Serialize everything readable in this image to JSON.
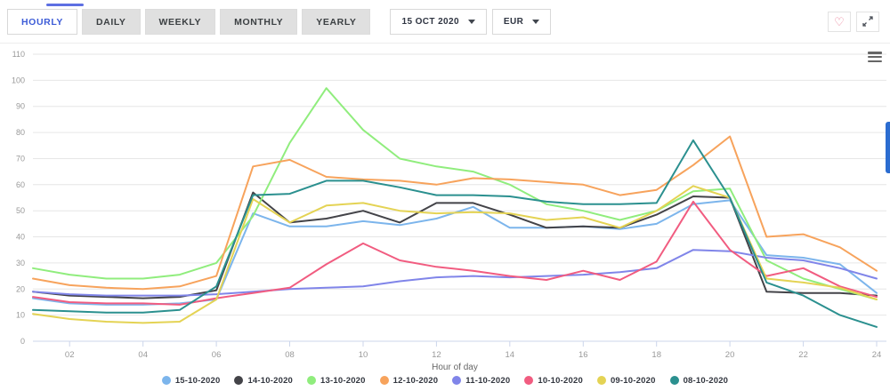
{
  "header": {
    "tabs": [
      {
        "label": "HOURLY",
        "active": true
      },
      {
        "label": "DAILY",
        "active": false
      },
      {
        "label": "WEEKLY",
        "active": false
      },
      {
        "label": "MONTHLY",
        "active": false
      },
      {
        "label": "YEARLY",
        "active": false
      }
    ],
    "date_select": {
      "value": "15 OCT 2020"
    },
    "currency_select": {
      "value": "EUR"
    },
    "favorite_icon": "heart-outline",
    "fullscreen_icon": "expand-arrows",
    "context_menu_icon": "hamburger-menu"
  },
  "chart_data": {
    "type": "line",
    "title": "",
    "xlabel": "Hour of day",
    "ylabel": "",
    "ylim": [
      0,
      110
    ],
    "y_ticks": [
      0,
      10,
      20,
      30,
      40,
      50,
      60,
      70,
      80,
      90,
      100,
      110
    ],
    "x_hours": [
      1,
      2,
      3,
      4,
      5,
      6,
      7,
      8,
      9,
      10,
      11,
      12,
      13,
      14,
      15,
      16,
      17,
      18,
      19,
      20,
      21,
      22,
      23,
      24
    ],
    "x_tick_labels": [
      "02",
      "04",
      "06",
      "08",
      "10",
      "12",
      "14",
      "16",
      "18",
      "20",
      "22",
      "24"
    ],
    "grid": true,
    "legend_position": "bottom",
    "series": [
      {
        "name": "15-10-2020",
        "color": "#7cb5ec",
        "values": [
          16.5,
          14.5,
          14,
          14,
          14.5,
          16,
          49,
          44,
          44,
          46,
          44.5,
          47,
          51.5,
          43.5,
          43.5,
          44,
          43,
          45,
          52.5,
          54,
          33,
          32,
          29.5,
          18.5
        ]
      },
      {
        "name": "14-10-2020",
        "color": "#434348",
        "values": [
          19,
          17.5,
          17,
          16.5,
          17,
          19.5,
          57,
          45.5,
          47,
          50,
          45.5,
          53,
          53,
          48.5,
          43.5,
          44,
          43.5,
          48.5,
          55.5,
          55,
          19,
          18.5,
          18.5,
          17.5
        ]
      },
      {
        "name": "13-10-2020",
        "color": "#90ed7d",
        "values": [
          28,
          25.5,
          24,
          24,
          25.5,
          30,
          48,
          76,
          97,
          81,
          70,
          67,
          65,
          60,
          52.5,
          50,
          46.5,
          50,
          57.5,
          58.5,
          31,
          24,
          20,
          16
        ]
      },
      {
        "name": "12-10-2020",
        "color": "#f7a35c",
        "values": [
          24,
          21.5,
          20.5,
          20,
          21,
          25,
          67,
          69.5,
          63,
          62,
          61.5,
          60,
          62.5,
          62,
          61,
          60,
          56,
          58,
          67.5,
          78.5,
          40,
          41,
          36,
          27
        ]
      },
      {
        "name": "11-10-2020",
        "color": "#8085e9",
        "values": [
          19,
          18,
          17.5,
          17.5,
          17.5,
          18,
          19,
          20,
          20.5,
          21,
          23,
          24.5,
          25,
          24.5,
          25,
          25.5,
          26.5,
          28,
          35,
          34.5,
          32,
          31,
          28,
          24
        ]
      },
      {
        "name": "10-10-2020",
        "color": "#f15c80",
        "values": [
          17,
          15,
          14.5,
          14.5,
          14,
          16.5,
          18.5,
          20.5,
          29.5,
          37.5,
          31,
          28.5,
          27,
          25,
          23.5,
          27,
          23.5,
          30.5,
          53.5,
          35,
          25,
          28,
          21,
          17
        ]
      },
      {
        "name": "09-10-2020",
        "color": "#e4d354",
        "values": [
          10.5,
          8.5,
          7.5,
          7,
          7.5,
          16,
          54.5,
          45.5,
          52,
          53,
          50,
          49,
          49.5,
          49,
          46.5,
          47.5,
          43.5,
          50,
          59.5,
          55,
          24,
          22.5,
          20.5,
          16
        ]
      },
      {
        "name": "08-10-2020",
        "color": "#2b908f",
        "values": [
          12,
          11.5,
          11,
          11,
          12,
          21,
          56,
          56.5,
          61.5,
          61.5,
          59,
          56,
          56,
          55.5,
          53.5,
          52.5,
          52.5,
          53,
          77,
          55,
          22.5,
          17.5,
          10,
          5.5
        ]
      }
    ]
  }
}
